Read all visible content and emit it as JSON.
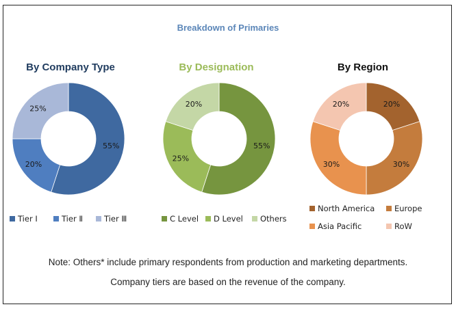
{
  "chart_data": [
    {
      "type": "pie",
      "donut": true,
      "title": "By Company Type",
      "title_color": "#1f3b5e",
      "categories": [
        "Tier Ⅰ",
        "Tier Ⅱ",
        "Tier Ⅲ"
      ],
      "values": [
        55,
        20,
        25
      ],
      "labels": [
        "55%",
        "20%",
        "25%"
      ],
      "colors": [
        "#3f69a0",
        "#4f7ec0",
        "#a9b8d8"
      ],
      "legend": "bottom"
    },
    {
      "type": "pie",
      "donut": true,
      "title": "By Designation",
      "title_color": "#9bbb59",
      "categories": [
        "C Level",
        "D Level",
        "Others"
      ],
      "values": [
        55,
        25,
        20
      ],
      "labels": [
        "55%",
        "25%",
        "20%"
      ],
      "colors": [
        "#76953f",
        "#9bbb59",
        "#c4d7a6"
      ],
      "legend": "bottom"
    },
    {
      "type": "pie",
      "donut": true,
      "title": "By Region",
      "title_color": "#111111",
      "categories": [
        "North America",
        "Europe",
        "Asia Pacific",
        "RoW"
      ],
      "values": [
        20,
        30,
        30,
        20
      ],
      "labels": [
        "20%",
        "30%",
        "30%",
        "20%"
      ],
      "colors": [
        "#a3632e",
        "#c47c3d",
        "#e8924e",
        "#f4c6b0"
      ],
      "legend": "bottom"
    }
  ],
  "main_title": "Breakdown of Primaries",
  "main_title_color": "#5b86b8",
  "notes": [
    "Note: Others* include primary respondents from production and marketing departments.",
    "Company tiers are based on the revenue of the company."
  ]
}
